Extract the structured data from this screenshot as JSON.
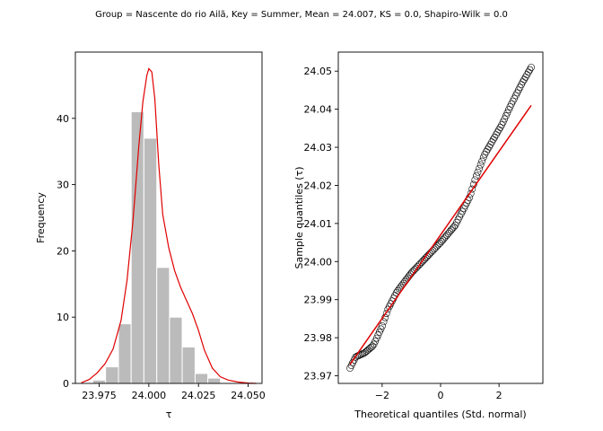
{
  "suptitle": "Group = Nascente do rio Ailã, Key = Summer, Mean = 24.007, KS = 0.0, Shapiro-Wilk = 0.0",
  "colors": {
    "bar": "#bbbbbb",
    "bar_edge": "#ffffff",
    "kde": "#e00000",
    "fit_line": "#e00000",
    "marker_edge": "#000000"
  },
  "chart_data": [
    {
      "type": "bar",
      "subtype": "histogram_with_kde",
      "title": "",
      "xlabel": "τ",
      "ylabel": "Frequency",
      "xlim": [
        23.963,
        24.057
      ],
      "ylim": [
        0,
        50
      ],
      "xticks": [
        23.975,
        24.0,
        24.025,
        24.05
      ],
      "xtick_labels": [
        "23.975",
        "24.000",
        "24.025",
        "24.050"
      ],
      "yticks": [
        0,
        10,
        20,
        30,
        40
      ],
      "bin_edges": [
        23.9718,
        23.9782,
        23.9847,
        23.9911,
        23.9975,
        24.004,
        24.0104,
        24.0168,
        24.0233,
        24.0297,
        24.0361
      ],
      "values": [
        0.5,
        2.5,
        9,
        41,
        37,
        17.5,
        10,
        5.5,
        1.5,
        0.8
      ],
      "kde_x": [
        23.966,
        23.97,
        23.974,
        23.978,
        23.982,
        23.986,
        23.989,
        23.992,
        23.995,
        23.997,
        23.999,
        24.0,
        24.0015,
        24.003,
        24.005,
        24.007,
        24.01,
        24.013,
        24.016,
        24.019,
        24.022,
        24.025,
        24.028,
        24.032,
        24.036,
        24.04,
        24.045,
        24.05,
        24.054
      ],
      "kde_y": [
        0.1,
        0.6,
        1.6,
        3.0,
        5.2,
        9.5,
        15.5,
        24.5,
        36.0,
        42.5,
        46.5,
        47.5,
        47.0,
        43.0,
        33.0,
        25.5,
        20.5,
        17.0,
        14.5,
        12.5,
        10.5,
        8.0,
        5.0,
        2.3,
        1.0,
        0.5,
        0.2,
        0.05,
        0.0
      ],
      "grid": false
    },
    {
      "type": "scatter",
      "subtype": "qq_plot",
      "title": "",
      "xlabel": "Theoretical quantiles (Std. normal)",
      "ylabel": "Sample quantiles (τ)",
      "xlim": [
        -3.5,
        3.5
      ],
      "ylim": [
        23.968,
        24.055
      ],
      "xticks": [
        -2,
        0,
        2
      ],
      "xtick_labels": [
        "−2",
        "0",
        "2"
      ],
      "yticks": [
        23.97,
        23.98,
        23.99,
        24.0,
        24.01,
        24.02,
        24.03,
        24.04,
        24.05
      ],
      "ytick_labels": [
        "23.97",
        "23.98",
        "23.99",
        "24.00",
        "24.01",
        "24.02",
        "24.03",
        "24.04",
        "24.05"
      ],
      "n_points": 130,
      "theoretical_min": -3.1,
      "theoretical_max": 3.1,
      "sample_quantile_knots": [
        [
          -3.1,
          23.972
        ],
        [
          -2.9,
          23.975
        ],
        [
          -2.6,
          23.976
        ],
        [
          -2.3,
          23.978
        ],
        [
          -2.0,
          23.983
        ],
        [
          -1.8,
          23.9875
        ],
        [
          -1.5,
          23.992
        ],
        [
          -1.0,
          23.997
        ],
        [
          -0.5,
          24.001
        ],
        [
          0.0,
          24.005
        ],
        [
          0.5,
          24.0095
        ],
        [
          1.0,
          24.017
        ],
        [
          1.2,
          24.022
        ],
        [
          1.5,
          24.028
        ],
        [
          1.8,
          24.032
        ],
        [
          2.1,
          24.036
        ],
        [
          2.4,
          24.041
        ],
        [
          2.6,
          24.044
        ],
        [
          2.8,
          24.047
        ],
        [
          3.1,
          24.051
        ]
      ],
      "fit_line": {
        "x": [
          -3.1,
          3.1
        ],
        "y": [
          23.973,
          24.041
        ]
      },
      "marker": "open-circle",
      "grid": false
    }
  ]
}
